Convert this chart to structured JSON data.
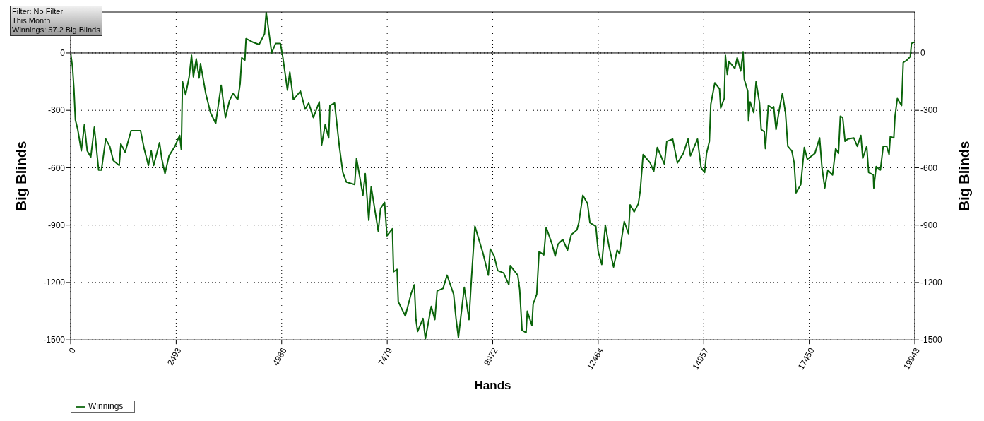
{
  "chart_data": {
    "type": "line",
    "xlabel": "Hands",
    "ylabel": "Big Blinds",
    "y2label": "Big Blinds",
    "annotations": [
      "Filter: No Filter",
      "This Month",
      "Winnings: 57.2 Big Blinds"
    ],
    "series": [
      {
        "name": "Winnings",
        "color": "#0a640a",
        "x": [
          0,
          45,
          78,
          112,
          168,
          252,
          325,
          392,
          476,
          560,
          661,
          728,
          829,
          924,
          1008,
          1148,
          1187,
          1288,
          1428,
          1652,
          1736,
          1837,
          1904,
          1960,
          2100,
          2156,
          2229,
          2324,
          2464,
          2576,
          2615,
          2643,
          2716,
          2800,
          2856,
          2901,
          2968,
          3035,
          3069,
          3192,
          3304,
          3427,
          3556,
          3657,
          3752,
          3836,
          3948,
          4004,
          4043,
          4116,
          4144,
          4312,
          4452,
          4581,
          4620,
          4659,
          4749,
          4844,
          4956,
          5011,
          5122,
          5178,
          5262,
          5429,
          5540,
          5624,
          5735,
          5874,
          5930,
          6014,
          6097,
          6125,
          6236,
          6348,
          6431,
          6515,
          6710,
          6754,
          6905,
          6960,
          7044,
          7100,
          7267,
          7323,
          7417,
          7473,
          7601,
          7629,
          7712,
          7740,
          7907,
          8047,
          8119,
          8158,
          8197,
          8325,
          8381,
          8520,
          8604,
          8659,
          8799,
          8893,
          9049,
          9105,
          9161,
          9300,
          9411,
          9467,
          9551,
          9746,
          9868,
          9913,
          10006,
          10090,
          10229,
          10352,
          10386,
          10564,
          10609,
          10665,
          10760,
          10788,
          10899,
          10927,
          11011,
          11067,
          11179,
          11235,
          11374,
          11447,
          11514,
          11626,
          11738,
          11827,
          11961,
          12005,
          12101,
          12212,
          12268,
          12408,
          12464,
          12548,
          12632,
          12715,
          12827,
          12911,
          12967,
          13023,
          13079,
          13179,
          13218,
          13313,
          13413,
          13458,
          13525,
          13693,
          13776,
          13860,
          14028,
          14084,
          14224,
          14335,
          14475,
          14587,
          14643,
          14810,
          14894,
          14978,
          15024,
          15091,
          15124,
          15219,
          15330,
          15358,
          15442,
          15469,
          15514,
          15553,
          15692,
          15748,
          15831,
          15887,
          15915,
          15998,
          16015,
          16054,
          16138,
          16193,
          16276,
          16315,
          16388,
          16415,
          16482,
          16571,
          16610,
          16665,
          16749,
          16816,
          16888,
          16944,
          17038,
          17094,
          17138,
          17250,
          17333,
          17405,
          17584,
          17695,
          17751,
          17817,
          17889,
          18001,
          18073,
          18140,
          18184,
          18240,
          18296,
          18363,
          18502,
          18585,
          18669,
          18714,
          18808,
          18853,
          18964,
          18975,
          19031,
          19131,
          19197,
          19281,
          19336,
          19364,
          19448,
          19476,
          19531,
          19631,
          19670,
          19754,
          19837,
          19865,
          19943
        ],
        "values": [
          0,
          -75,
          -188,
          -350,
          -400,
          -512,
          -375,
          -512,
          -544,
          -388,
          -612,
          -612,
          -450,
          -488,
          -562,
          -588,
          -475,
          -519,
          -406,
          -406,
          -500,
          -588,
          -512,
          -588,
          -469,
          -556,
          -631,
          -538,
          -488,
          -431,
          -506,
          -150,
          -219,
          -125,
          -12,
          -125,
          -31,
          -131,
          -56,
          -212,
          -312,
          -369,
          -169,
          -338,
          -250,
          -212,
          -244,
          -162,
          -25,
          -38,
          75,
          56,
          44,
          100,
          212,
          150,
          0,
          50,
          50,
          -19,
          -194,
          -100,
          -244,
          -200,
          -294,
          -262,
          -338,
          -256,
          -481,
          -375,
          -444,
          -275,
          -262,
          -488,
          -625,
          -675,
          -688,
          -550,
          -744,
          -631,
          -875,
          -700,
          -931,
          -812,
          -781,
          -956,
          -919,
          -1144,
          -1131,
          -1300,
          -1375,
          -1256,
          -1212,
          -1394,
          -1456,
          -1388,
          -1494,
          -1325,
          -1394,
          -1244,
          -1231,
          -1162,
          -1262,
          -1388,
          -1488,
          -1225,
          -1394,
          -1188,
          -906,
          -1050,
          -1162,
          -1025,
          -1062,
          -1138,
          -1150,
          -1212,
          -1112,
          -1162,
          -1238,
          -1450,
          -1462,
          -1350,
          -1425,
          -1312,
          -1262,
          -1038,
          -1056,
          -912,
          -1000,
          -1062,
          -1000,
          -975,
          -1031,
          -950,
          -925,
          -888,
          -744,
          -788,
          -888,
          -906,
          -1038,
          -1106,
          -900,
          -1006,
          -1119,
          -1031,
          -1050,
          -962,
          -881,
          -944,
          -794,
          -831,
          -788,
          -719,
          -531,
          -575,
          -619,
          -494,
          -581,
          -462,
          -450,
          -575,
          -525,
          -450,
          -538,
          -450,
          -600,
          -625,
          -525,
          -462,
          -269,
          -156,
          -188,
          -288,
          -238,
          -12,
          -112,
          -44,
          -81,
          -25,
          -94,
          6,
          -138,
          -200,
          -356,
          -256,
          -312,
          -150,
          -262,
          -400,
          -412,
          -500,
          -275,
          -288,
          -281,
          -400,
          -288,
          -212,
          -312,
          -488,
          -512,
          -575,
          -731,
          -688,
          -494,
          -556,
          -525,
          -444,
          -600,
          -706,
          -612,
          -638,
          -500,
          -525,
          -331,
          -338,
          -462,
          -450,
          -444,
          -488,
          -431,
          -550,
          -488,
          -625,
          -638,
          -706,
          -594,
          -612,
          -488,
          -488,
          -531,
          -438,
          -444,
          -331,
          -238,
          -275,
          -50,
          -38,
          -19,
          50,
          57.2
        ]
      }
    ],
    "xlim": [
      0,
      19943
    ],
    "xticks": [
      0,
      2493,
      4986,
      7479,
      9972,
      12464,
      14957,
      17450,
      19943
    ],
    "ylim": [
      -1500,
      214
    ],
    "yticks": [
      -1500,
      -1200,
      -900,
      -600,
      -300,
      0
    ],
    "y2lim": [
      -1500,
      214
    ],
    "y2ticks": [
      -1500,
      -1200,
      -900,
      -600,
      -300,
      0
    ],
    "ref_lines": [
      {
        "axis": "y",
        "value": 0,
        "color": "#000000"
      }
    ],
    "grid": true,
    "legend": "bottom left",
    "marker": "none",
    "line_style": "solid"
  }
}
